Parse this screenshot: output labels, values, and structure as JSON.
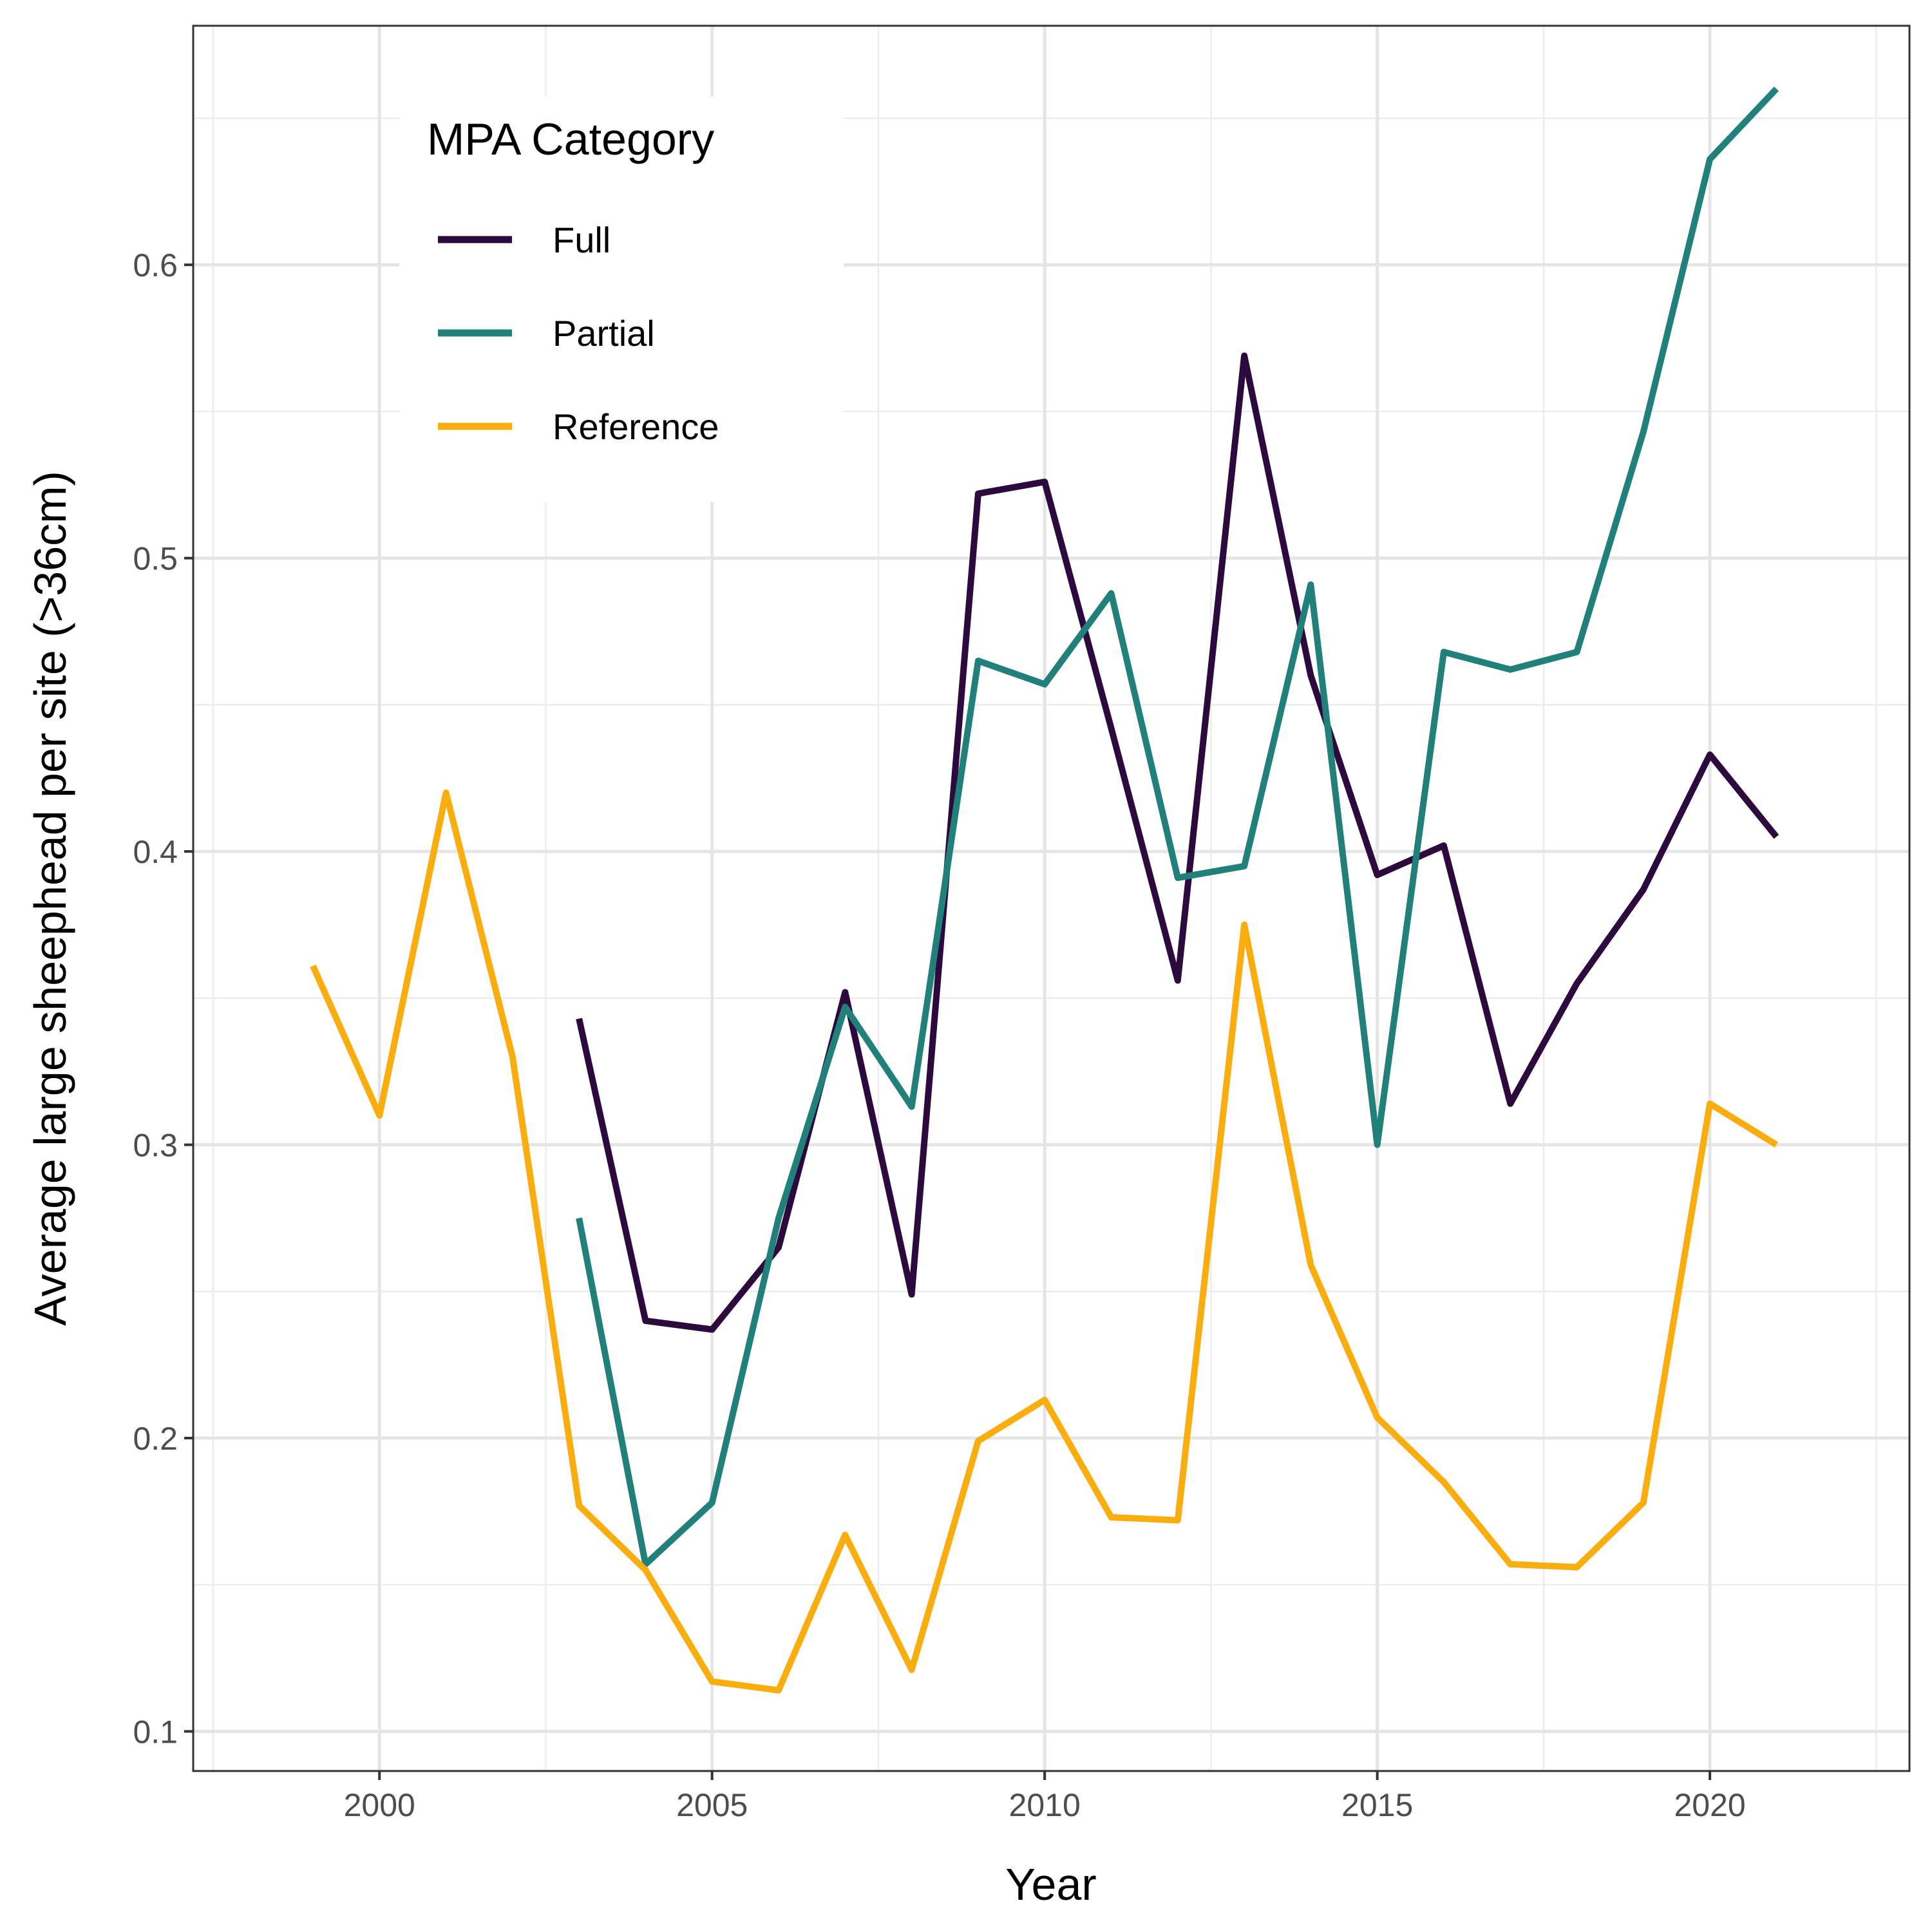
{
  "chart_data": {
    "type": "line",
    "xlabel": "Year",
    "ylabel": "Average large sheephead per site (>36cm)",
    "xlim": [
      1997.2,
      2023.0
    ],
    "ylim": [
      0.0865,
      0.6815
    ],
    "x_ticks": [
      2000,
      2005,
      2010,
      2015,
      2020
    ],
    "y_ticks": [
      0.1,
      0.2,
      0.3,
      0.4,
      0.5,
      0.6
    ],
    "x_tick_labels": [
      "2000",
      "2005",
      "2010",
      "2015",
      "2020"
    ],
    "y_tick_labels": [
      "0.1",
      "0.2",
      "0.3",
      "0.4",
      "0.5",
      "0.6"
    ],
    "grid": true,
    "legend": {
      "title": "MPA Category",
      "placement": "top-left inside plot"
    },
    "series": [
      {
        "name": "Full",
        "color": "#2d0a3d",
        "points": [
          [
            2003,
            0.343
          ],
          [
            2004,
            0.24
          ],
          [
            2005,
            0.237
          ],
          [
            2006,
            0.265
          ],
          [
            2007,
            0.352
          ],
          [
            2008,
            0.249
          ],
          [
            2009,
            0.522
          ],
          [
            2010,
            0.526
          ],
          [
            2011,
            0.442
          ],
          [
            2012,
            0.356
          ],
          [
            2013,
            0.569
          ],
          [
            2014,
            0.46
          ],
          [
            2015,
            0.392
          ],
          [
            2016,
            0.402
          ],
          [
            2017,
            0.314
          ],
          [
            2018,
            0.355
          ],
          [
            2019,
            0.387
          ],
          [
            2020,
            0.433
          ],
          [
            2021,
            0.405
          ]
        ]
      },
      {
        "name": "Partial",
        "color": "#21817a",
        "points": [
          [
            2003,
            0.275
          ],
          [
            2004,
            0.157
          ],
          [
            2005,
            0.178
          ],
          [
            2006,
            0.275
          ],
          [
            2007,
            0.347
          ],
          [
            2008,
            0.313
          ],
          [
            2009,
            0.465
          ],
          [
            2010,
            0.457
          ],
          [
            2011,
            0.488
          ],
          [
            2012,
            0.391
          ],
          [
            2013,
            0.395
          ],
          [
            2014,
            0.491
          ],
          [
            2015,
            0.3
          ],
          [
            2016,
            0.468
          ],
          [
            2017,
            0.462
          ],
          [
            2018,
            0.468
          ],
          [
            2019,
            0.543
          ],
          [
            2020,
            0.636
          ],
          [
            2021,
            0.66
          ]
        ]
      },
      {
        "name": "Reference",
        "color": "#f9ad0f",
        "points": [
          [
            1999,
            0.361
          ],
          [
            2000,
            0.31
          ],
          [
            2001,
            0.42
          ],
          [
            2002,
            0.33
          ],
          [
            2003,
            0.177
          ],
          [
            2004,
            0.155
          ],
          [
            2005,
            0.117
          ],
          [
            2006,
            0.114
          ],
          [
            2007,
            0.167
          ],
          [
            2008,
            0.121
          ],
          [
            2009,
            0.199
          ],
          [
            2010,
            0.213
          ],
          [
            2011,
            0.173
          ],
          [
            2012,
            0.172
          ],
          [
            2013,
            0.375
          ],
          [
            2014,
            0.259
          ],
          [
            2015,
            0.207
          ],
          [
            2016,
            0.185
          ],
          [
            2017,
            0.157
          ],
          [
            2018,
            0.156
          ],
          [
            2019,
            0.178
          ],
          [
            2020,
            0.314
          ],
          [
            2021,
            0.3
          ]
        ]
      }
    ]
  }
}
